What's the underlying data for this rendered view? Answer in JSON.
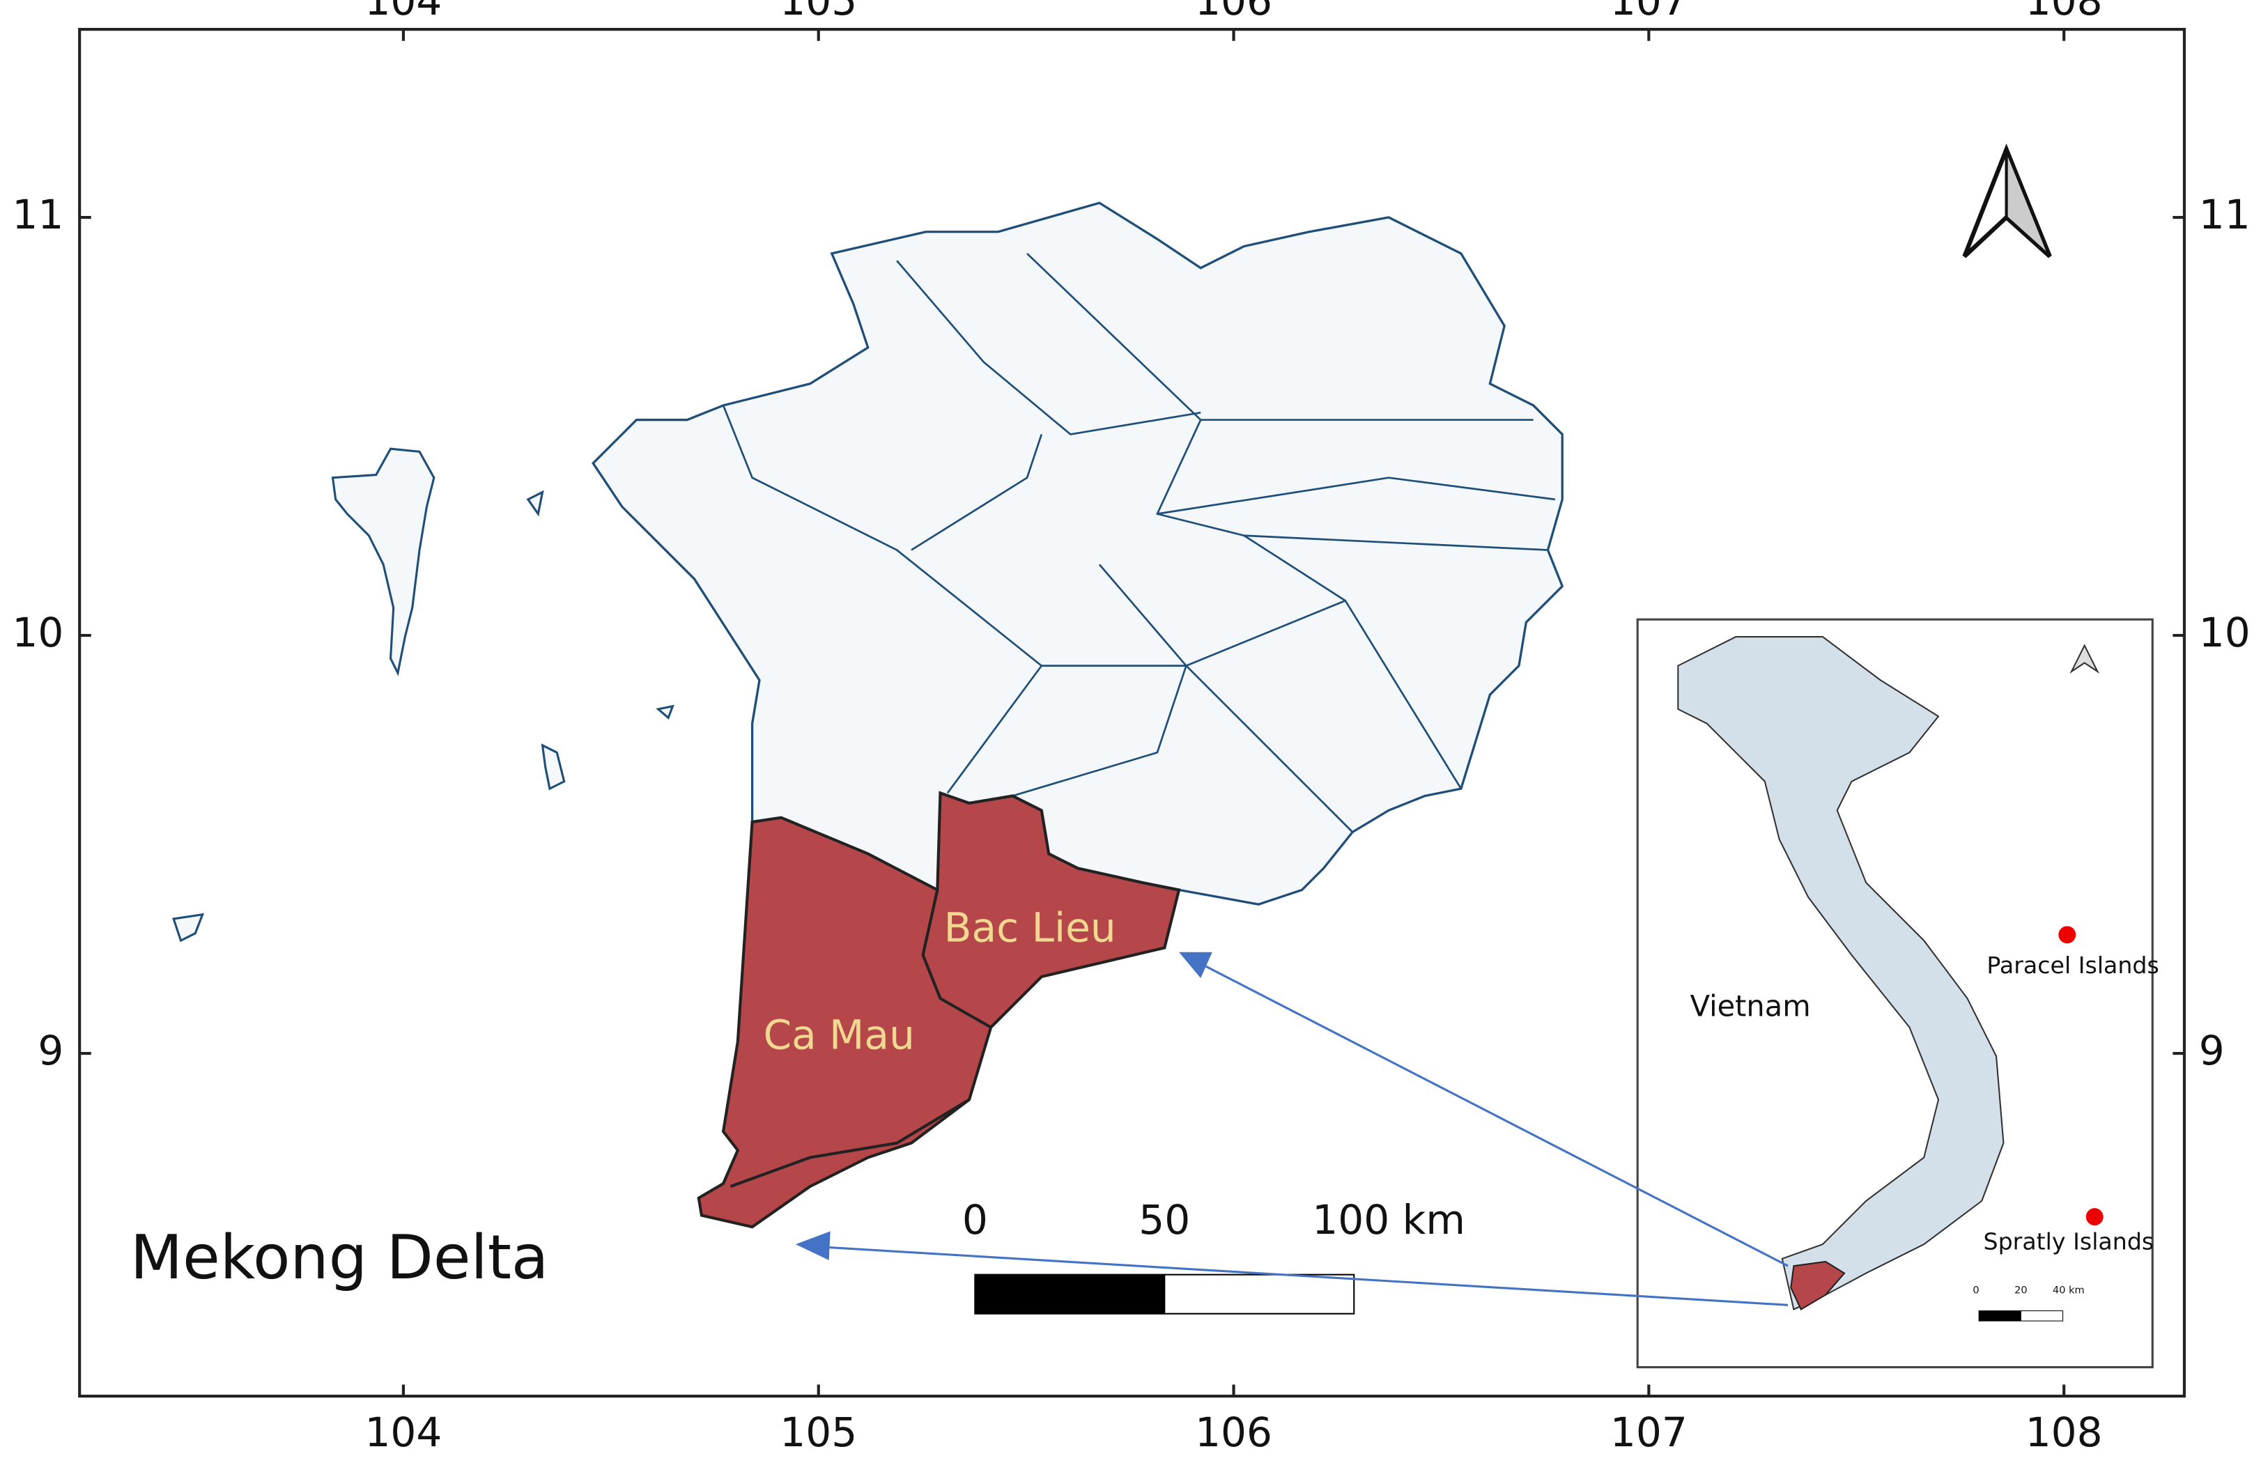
{
  "map": {
    "title": "Mekong Delta",
    "xlim": [
      103.22,
      108.29
    ],
    "ylim": [
      8.18,
      11.45
    ],
    "xticks": [
      104,
      105,
      106,
      107,
      108
    ],
    "yticks": [
      9,
      10,
      11
    ],
    "regions": [
      "Bac Lieu",
      "Ca Mau"
    ],
    "scale_bar": [
      "0",
      "50",
      "100 km"
    ],
    "inset": {
      "country": "Vietnam",
      "islands": [
        "Paracel Islands",
        "Spratly Islands"
      ],
      "scale_bar": [
        "0",
        "20",
        "40 km"
      ]
    }
  }
}
